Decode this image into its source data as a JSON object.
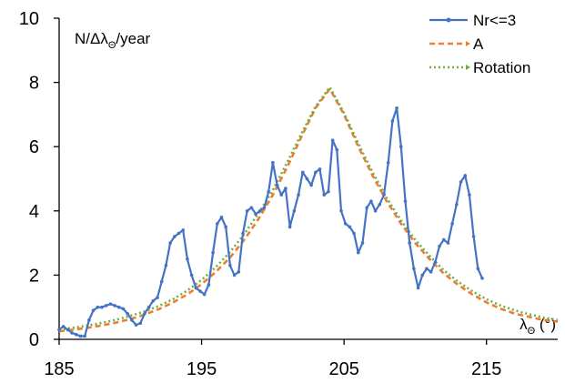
{
  "chart_data": {
    "type": "line",
    "ylabel_parts": [
      "N/Δλ",
      "Θ",
      "/year"
    ],
    "xlabel_parts": [
      "λ",
      "Θ",
      " (°)"
    ],
    "xlim": [
      185,
      220
    ],
    "ylim": [
      0,
      10
    ],
    "x_ticks": [
      185,
      195,
      205,
      215
    ],
    "y_ticks": [
      0,
      2,
      4,
      6,
      8,
      10
    ],
    "grid": false,
    "legend_position": "top-right",
    "series": [
      {
        "name": "Nr<=3",
        "color": "#4472C4",
        "style": "solid-with-markers",
        "x": [
          185.0,
          185.3,
          185.6,
          185.9,
          186.2,
          186.5,
          186.8,
          187.1,
          187.4,
          187.7,
          188.0,
          188.3,
          188.6,
          188.9,
          189.2,
          189.5,
          189.8,
          190.1,
          190.4,
          190.7,
          191.0,
          191.3,
          191.6,
          191.9,
          192.2,
          192.5,
          192.8,
          193.1,
          193.4,
          193.7,
          194.0,
          194.3,
          194.6,
          194.9,
          195.2,
          195.5,
          195.8,
          196.1,
          196.4,
          196.7,
          197.0,
          197.3,
          197.6,
          197.9,
          198.2,
          198.5,
          198.8,
          199.1,
          199.4,
          199.7,
          200.0,
          200.3,
          200.6,
          200.9,
          201.2,
          201.5,
          201.8,
          202.1,
          202.4,
          202.7,
          203.0,
          203.3,
          203.6,
          203.9,
          204.2,
          204.5,
          204.8,
          205.1,
          205.4,
          205.7,
          206.0,
          206.3,
          206.6,
          206.9,
          207.2,
          207.5,
          207.8,
          208.1,
          208.4,
          208.7,
          209.0,
          209.3,
          209.6,
          209.9,
          210.2,
          210.5,
          210.8,
          211.1,
          211.4,
          211.7,
          212.0,
          212.3,
          212.6,
          212.9,
          213.2,
          213.5,
          213.8,
          214.1,
          214.4,
          214.7
        ],
        "y": [
          0.3,
          0.4,
          0.3,
          0.2,
          0.15,
          0.1,
          0.1,
          0.6,
          0.9,
          1.0,
          1.0,
          1.05,
          1.1,
          1.05,
          1.0,
          0.95,
          0.8,
          0.6,
          0.45,
          0.5,
          0.8,
          1.0,
          1.2,
          1.3,
          1.8,
          2.3,
          3.0,
          3.2,
          3.3,
          3.4,
          2.5,
          2.0,
          1.6,
          1.5,
          1.4,
          1.7,
          2.7,
          3.6,
          3.8,
          3.5,
          2.3,
          2.0,
          2.1,
          3.3,
          4.0,
          4.1,
          3.9,
          4.0,
          4.1,
          4.6,
          5.5,
          4.8,
          4.5,
          4.7,
          3.5,
          4.0,
          4.5,
          5.2,
          5.0,
          4.8,
          5.2,
          5.3,
          4.5,
          4.6,
          6.2,
          5.9,
          4.0,
          3.6,
          3.5,
          3.3,
          2.7,
          3.0,
          4.1,
          4.3,
          4.0,
          4.2,
          4.5,
          5.5,
          6.8,
          7.2,
          6.0,
          4.3,
          3.0,
          2.2,
          1.6,
          2.0,
          2.2,
          2.1,
          2.4,
          2.9,
          3.1,
          3.0,
          3.6,
          4.2,
          4.9,
          5.1,
          4.5,
          3.2,
          2.2,
          1.9
        ]
      },
      {
        "name": "A",
        "color": "#ED7D31",
        "style": "dashed",
        "x": [
          185,
          186,
          187,
          188,
          189,
          190,
          191,
          192,
          193,
          194,
          195,
          196,
          197,
          198,
          199,
          200,
          201,
          202,
          203,
          204,
          205,
          206,
          207,
          208,
          209,
          210,
          211,
          212,
          213,
          214,
          215,
          216,
          217,
          218,
          219,
          220
        ],
        "y": [
          0.25,
          0.3,
          0.36,
          0.43,
          0.52,
          0.63,
          0.77,
          0.94,
          1.15,
          1.4,
          1.72,
          2.1,
          2.55,
          3.1,
          3.75,
          4.5,
          5.35,
          6.3,
          7.2,
          7.8,
          7.0,
          6.0,
          5.1,
          4.3,
          3.6,
          3.0,
          2.5,
          2.05,
          1.7,
          1.4,
          1.15,
          0.95,
          0.8,
          0.7,
          0.6,
          0.55
        ]
      },
      {
        "name": "Rotation",
        "color": "#70AD47",
        "style": "dotted",
        "x": [
          185,
          186,
          187,
          188,
          189,
          190,
          191,
          192,
          193,
          194,
          195,
          196,
          197,
          198,
          199,
          200,
          201,
          202,
          203,
          204,
          205,
          206,
          207,
          208,
          209,
          210,
          211,
          212,
          213,
          214,
          215,
          216,
          217,
          218,
          219,
          220
        ],
        "y": [
          0.3,
          0.36,
          0.43,
          0.51,
          0.61,
          0.73,
          0.87,
          1.04,
          1.25,
          1.52,
          1.85,
          2.25,
          2.72,
          3.28,
          3.93,
          4.65,
          5.5,
          6.4,
          7.25,
          7.85,
          7.05,
          6.1,
          5.2,
          4.4,
          3.7,
          3.1,
          2.6,
          2.15,
          1.8,
          1.5,
          1.25,
          1.05,
          0.9,
          0.78,
          0.68,
          0.6
        ]
      }
    ]
  }
}
